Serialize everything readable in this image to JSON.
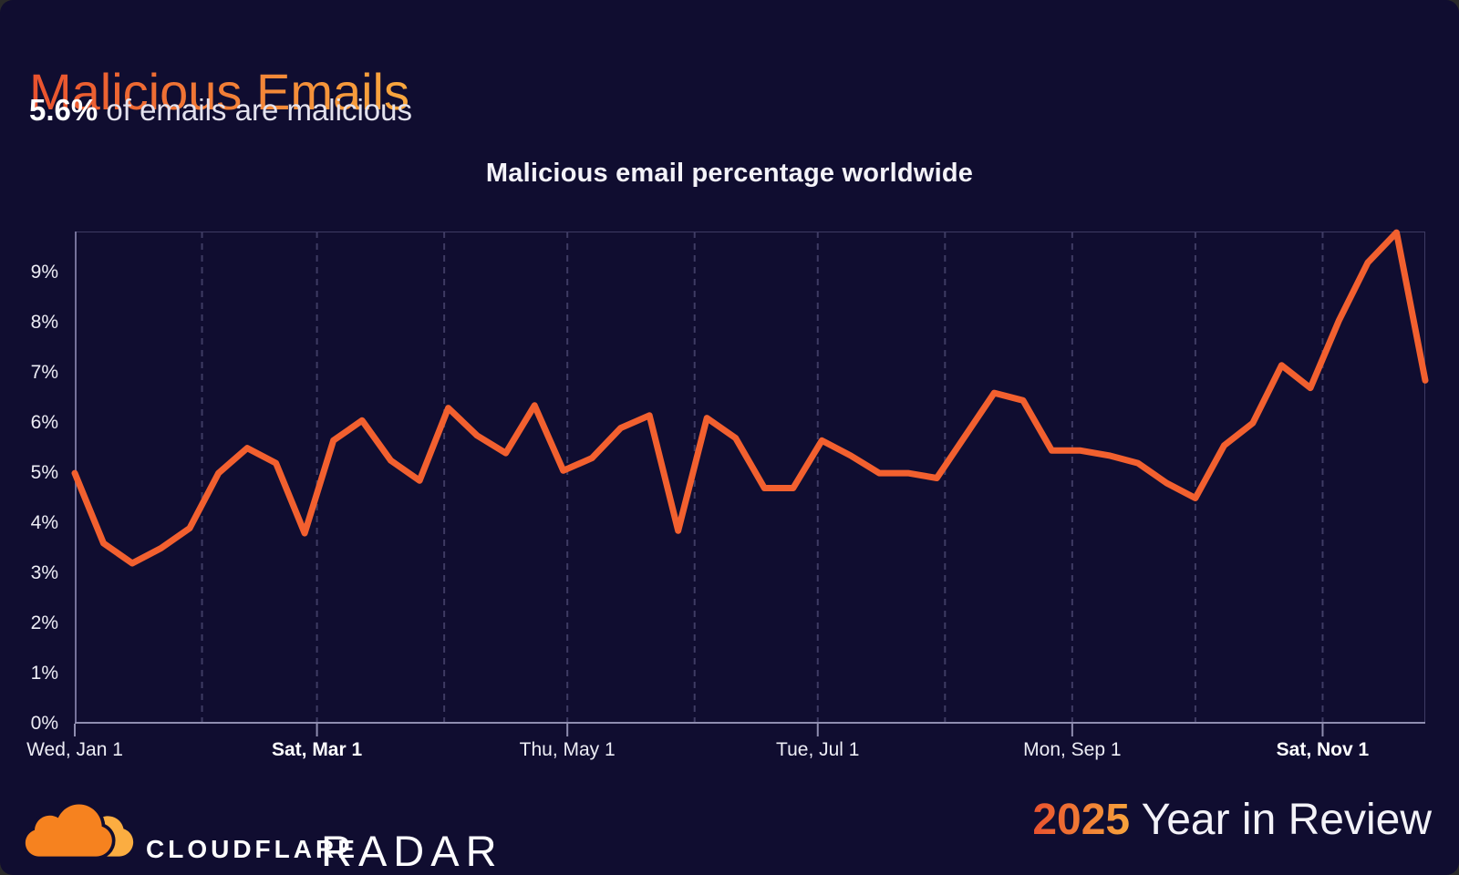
{
  "header": {
    "title": "Malicious Emails",
    "stat_value": "5.6%",
    "stat_text": " of emails are malicious"
  },
  "chart": {
    "title": "Malicious email percentage worldwide",
    "chart_data": {
      "type": "line",
      "series_name": "Malicious email percentage worldwide",
      "cadence": "weekly",
      "x_dates": [
        "Jan 1",
        "Jan 8",
        "Jan 15",
        "Jan 22",
        "Jan 29",
        "Feb 5",
        "Feb 12",
        "Feb 19",
        "Feb 26",
        "Mar 5",
        "Mar 12",
        "Mar 19",
        "Mar 26",
        "Apr 2",
        "Apr 9",
        "Apr 16",
        "Apr 23",
        "Apr 30",
        "May 7",
        "May 14",
        "May 21",
        "May 28",
        "Jun 4",
        "Jun 11",
        "Jun 18",
        "Jun 25",
        "Jul 2",
        "Jul 9",
        "Jul 16",
        "Jul 23",
        "Jul 30",
        "Aug 6",
        "Aug 13",
        "Aug 20",
        "Aug 27",
        "Sep 3",
        "Sep 10",
        "Sep 17",
        "Sep 24",
        "Oct 1",
        "Oct 8",
        "Oct 15",
        "Oct 22",
        "Oct 29",
        "Nov 5",
        "Nov 12",
        "Nov 19",
        "Nov 26"
      ],
      "values": [
        5.0,
        3.6,
        3.2,
        3.5,
        3.9,
        5.0,
        5.5,
        5.2,
        3.8,
        5.65,
        6.05,
        5.25,
        4.85,
        6.3,
        5.75,
        5.4,
        6.35,
        5.05,
        5.3,
        5.9,
        6.15,
        3.85,
        6.1,
        5.7,
        4.7,
        4.7,
        5.65,
        5.35,
        5.0,
        5.0,
        4.9,
        5.75,
        6.6,
        6.45,
        5.45,
        5.45,
        5.35,
        5.2,
        4.8,
        4.5,
        5.55,
        6.0,
        7.15,
        6.7,
        8.05,
        9.2,
        9.8,
        6.85
      ],
      "ylim": [
        0,
        9.82
      ],
      "y_tick_labels": [
        "0%",
        "1%",
        "2%",
        "3%",
        "4%",
        "5%",
        "6%",
        "7%",
        "8%",
        "9%"
      ],
      "x_ticks": [
        {
          "day": 0,
          "label": "Wed, Jan 1",
          "bold": false
        },
        {
          "day": 59,
          "label": "Sat, Mar 1",
          "bold": true
        },
        {
          "day": 120,
          "label": "Thu, May 1",
          "bold": false
        },
        {
          "day": 181,
          "label": "Tue, Jul 1",
          "bold": false
        },
        {
          "day": 243,
          "label": "Mon, Sep 1",
          "bold": false
        },
        {
          "day": 304,
          "label": "Sat, Nov 1",
          "bold": true
        }
      ],
      "month_gridline_days": [
        31,
        59,
        90,
        120,
        151,
        181,
        212,
        243,
        273,
        304
      ],
      "x_total_days": 329,
      "grid": "vertical-dashed",
      "legend": "none",
      "line_color": "#f2602f"
    }
  },
  "footer": {
    "brand": "CLOUDFLARE",
    "product": "RADAR",
    "year": "2025",
    "tagline": " Year in Review"
  },
  "colors": {
    "background": "#100d30",
    "line": "#f2602f",
    "gridline": "#3e3b63",
    "axis": "#8f8db0",
    "axis_left": "#75719a",
    "title_gradient_start": "#e9512e",
    "title_gradient_end": "#f9a83e",
    "logo_orange": "#f6821f",
    "logo_light_orange": "#fbad41"
  }
}
